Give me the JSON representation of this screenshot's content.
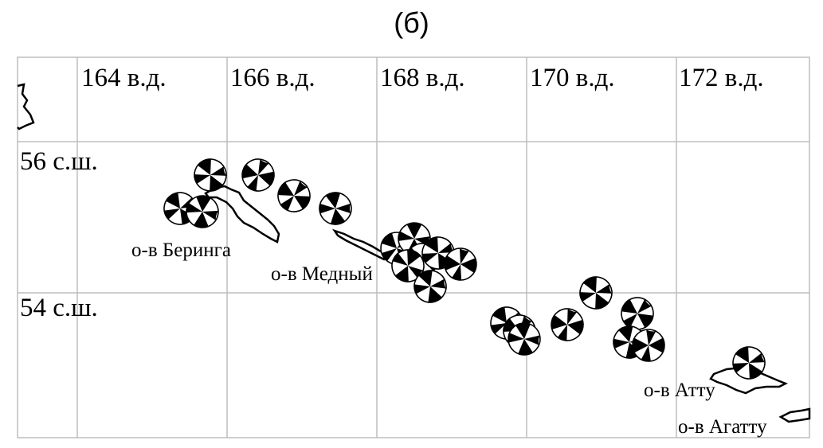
{
  "panel_label": "(б)",
  "longitude_labels": [
    "164 в.д.",
    "166 в.д.",
    "168 в.д.",
    "170 в.д.",
    "172 в.д."
  ],
  "latitude_labels": [
    "56 с.ш.",
    "54 с.ш."
  ],
  "island_labels": {
    "bering": "о-в Беринга",
    "medny": "о-в Медный",
    "attu": "о-в Атту",
    "agattu": "о-в Агатту"
  },
  "colors": {
    "ink": "#000000",
    "grid": "#bdbdbd",
    "background": "#ffffff"
  },
  "beachball_count": 26
}
